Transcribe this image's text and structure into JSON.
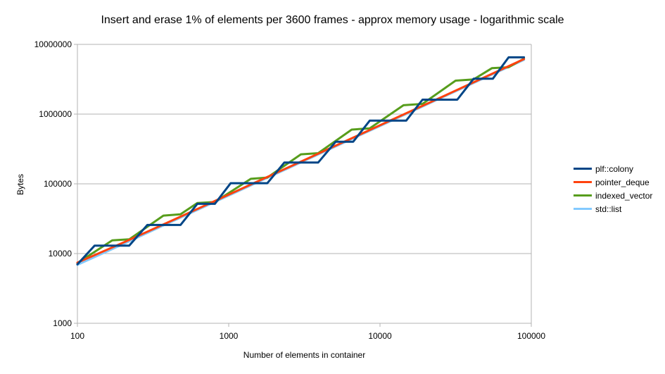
{
  "chart_data": {
    "type": "line",
    "title": "Insert and erase 1% of elements per 3600 frames - approx memory usage - logarithmic scale",
    "xlabel": "Number of elements in container",
    "ylabel": "Bytes",
    "x_scale": "log",
    "y_scale": "log",
    "xlim": [
      100,
      100000
    ],
    "ylim": [
      1000,
      10000000
    ],
    "x_ticks": [
      100,
      1000,
      10000,
      100000
    ],
    "x_tick_labels": [
      "100",
      "1000",
      "10000",
      "100000"
    ],
    "y_ticks": [
      1000,
      10000,
      100000,
      1000000,
      10000000
    ],
    "y_tick_labels": [
      "1000",
      "10000",
      "100000",
      "1000000",
      "10000000"
    ],
    "grid": "horizontal",
    "legend_position": "right",
    "series": [
      {
        "name": "plf::colony",
        "color": "#004586",
        "x": [
          100,
          130,
          220,
          290,
          480,
          620,
          810,
          1030,
          1800,
          2330,
          3900,
          5100,
          6650,
          8550,
          14900,
          19100,
          32400,
          41600,
          55700,
          70800,
          89500
        ],
        "y": [
          7000,
          13000,
          13000,
          25700,
          25700,
          51700,
          51700,
          102000,
          102000,
          202000,
          202000,
          402000,
          402000,
          805000,
          805000,
          1610000,
          1610000,
          3220000,
          3220000,
          6520000,
          6520000
        ]
      },
      {
        "name": "pointer_deque",
        "color": "#ff420e",
        "x": [
          100,
          200,
          400,
          800,
          1600,
          3200,
          6400,
          12800,
          25600,
          51200,
          89500
        ],
        "y": [
          7400,
          14300,
          28200,
          56000,
          111500,
          222000,
          443000,
          884000,
          1760000,
          3520000,
          6150000
        ]
      },
      {
        "name": "indexed_vector",
        "color": "#579d1c",
        "x": [
          100,
          170,
          220,
          370,
          480,
          620,
          810,
          1400,
          1800,
          3000,
          3900,
          6500,
          8550,
          14300,
          19100,
          31600,
          41600,
          54900,
          70800,
          89500
        ],
        "y": [
          7300,
          15500,
          16000,
          35000,
          36500,
          53000,
          55000,
          118000,
          123000,
          265000,
          275000,
          600000,
          625000,
          1340000,
          1400000,
          3020000,
          3150000,
          4560000,
          4700000,
          6250000
        ]
      },
      {
        "name": "std::list",
        "color": "#83caff",
        "x": [
          100,
          200,
          400,
          800,
          1600,
          3200,
          6400,
          12800,
          25600,
          51200,
          89500
        ],
        "y": [
          6900,
          13600,
          27300,
          54300,
          108500,
          216000,
          432000,
          862000,
          1725000,
          3440000,
          6000000
        ]
      }
    ]
  }
}
